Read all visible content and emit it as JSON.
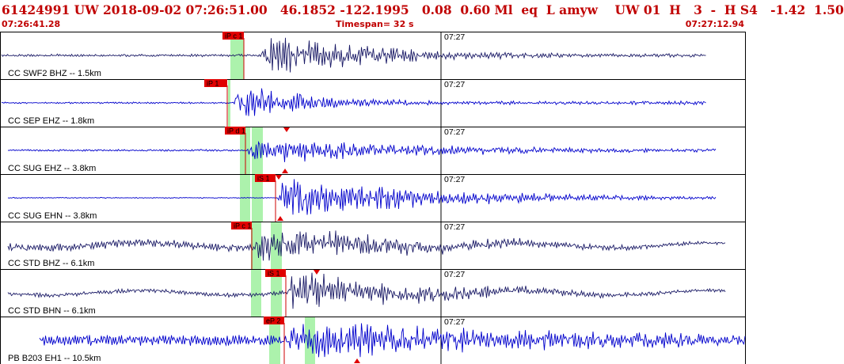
{
  "header": {
    "title": "61424991 UW 2018-09-02 07:26:51.00   46.1852 -122.1995   0.08  0.60 Ml  eq  L amyw    UW 01  H   3  -  H S4   -1.42  1.50",
    "start_time": "07:26:41.28",
    "timespan": "Timespan=  32 s",
    "end_time": "07:27:12.94"
  },
  "colors": {
    "header_text": "#c00000",
    "pick_flag": "#e00000",
    "pick_line": "#cc0000",
    "green_window": "#9ef09e",
    "trace_blue": "#0000cc",
    "trace_navy": "#1a1a66",
    "frame": "#000000"
  },
  "channels": [
    {
      "label": "CC SWF2 BHZ -- 1.5km",
      "minute_label": "07:27",
      "picks": [
        {
          "label": "iP c 1"
        }
      ],
      "trace": {
        "color": "#1a1a66"
      }
    },
    {
      "label": "CC SEP EHZ -- 1.8km",
      "minute_label": "07:27",
      "picks": [
        {
          "label": "iP 1"
        }
      ],
      "trace": {
        "color": "#0000cc"
      }
    },
    {
      "label": "CC SUG EHZ -- 3.8km",
      "minute_label": "07:27",
      "picks": [
        {
          "label": "iP d 1"
        }
      ],
      "trace": {
        "color": "#0000cc"
      }
    },
    {
      "label": "CC SUG EHN -- 3.8km",
      "minute_label": "07:27",
      "picks": [
        {
          "label": "iS 1"
        }
      ],
      "trace": {
        "color": "#0000cc"
      }
    },
    {
      "label": "CC STD BHZ -- 6.1km",
      "minute_label": "07:27",
      "picks": [
        {
          "label": "iP c 1"
        }
      ],
      "trace": {
        "color": "#1a1a66"
      }
    },
    {
      "label": "CC STD BHN -- 6.1km",
      "minute_label": "07:27",
      "picks": [
        {
          "label": "iS 1"
        }
      ],
      "trace": {
        "color": "#1a1a66"
      }
    },
    {
      "label": "PB B203 EH1 -- 10.5km",
      "minute_label": "07:27",
      "picks": [
        {
          "label": "eP 2"
        }
      ],
      "trace": {
        "color": "#0000cc"
      }
    }
  ]
}
